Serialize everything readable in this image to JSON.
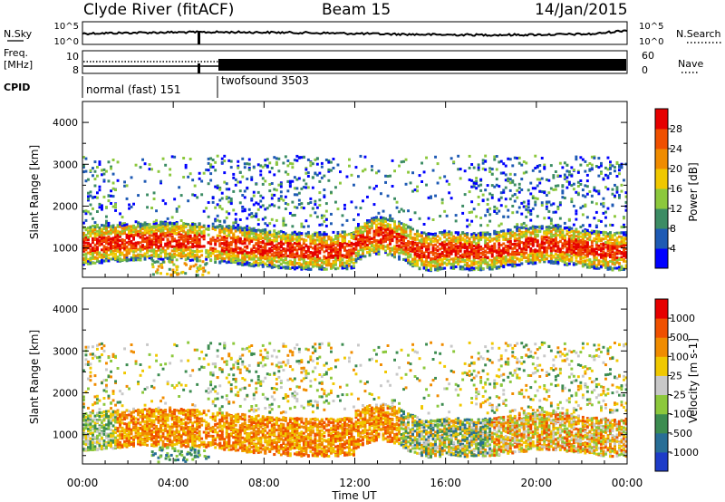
{
  "header": {
    "station": "Clyde River (fitACF)",
    "beam": "Beam 15",
    "date": "14/Jan/2015"
  },
  "noise_panel": {
    "left_label": "N.Sky",
    "left_ticks": [
      "10^5",
      "10^0"
    ],
    "right_label": "N.Search",
    "right_ticks": [
      "10^5",
      "10^0"
    ]
  },
  "freq_panel": {
    "left_label_top": "Freq.",
    "left_label_unit": "[MHz]",
    "left_ticks": [
      "10",
      "8"
    ],
    "right_label": "Nave",
    "right_ticks": [
      "60",
      "0"
    ]
  },
  "cpid_panel": {
    "label": "CPID",
    "modes": [
      {
        "name": "normal (fast) 151",
        "start_hour": 0,
        "end_hour": 6
      },
      {
        "name": "twofsound 3503",
        "start_hour": 6,
        "end_hour": 24
      }
    ]
  },
  "chart_data": [
    {
      "type": "heatmap",
      "title": "",
      "ylabel": "Slant Range [km]",
      "yticks": [
        "1000",
        "2000",
        "3000",
        "4000"
      ],
      "ylim": [
        300,
        4500
      ],
      "xlim": [
        0,
        24
      ],
      "colorbar": {
        "label": "Power [dB]",
        "ticks": [
          "4",
          "8",
          "12",
          "16",
          "20",
          "24",
          "28"
        ],
        "colors": [
          "#0000ff",
          "#1e5ab4",
          "#3c8c64",
          "#8cc83c",
          "#f0c800",
          "#f08c00",
          "#f05000",
          "#e60000"
        ]
      }
    },
    {
      "type": "heatmap",
      "title": "",
      "ylabel": "Slant Range [km]",
      "yticks": [
        "1000",
        "2000",
        "3000",
        "4000"
      ],
      "ylim": [
        300,
        4500
      ],
      "xlim": [
        0,
        24
      ],
      "xlabel": "Time UT",
      "xticks": [
        "00:00",
        "04:00",
        "08:00",
        "12:00",
        "16:00",
        "20:00",
        "00:00"
      ],
      "colorbar": {
        "label": "Velocity [m s-1]",
        "ticks": [
          "1000",
          "500",
          "100",
          "25",
          "-25",
          "-100",
          "-500",
          "-1000"
        ],
        "colors": [
          "#1e3cc8",
          "#286e96",
          "#3c8c50",
          "#8cc83c",
          "#c8c8c8",
          "#f0c800",
          "#f08c00",
          "#f05000",
          "#e60000"
        ]
      }
    }
  ]
}
